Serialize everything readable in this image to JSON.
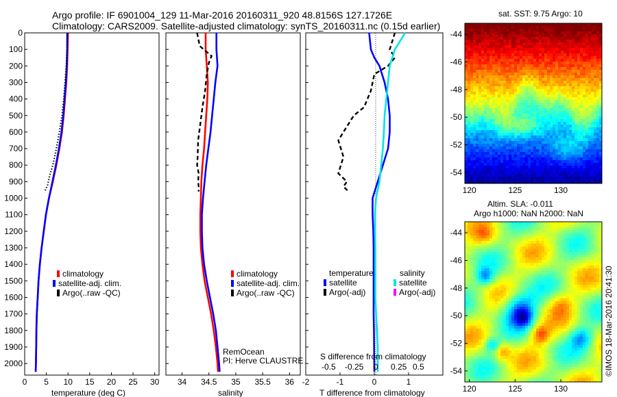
{
  "header": {
    "line1": "Argo profile: IF 6901004_129 11-Mar-2016 20160311_920 48.8156S 127.1726E",
    "line2": "Climatology: CARS2009. Satellite-adjusted climatology: synTS_20160311.nc (0.15d earlier)"
  },
  "credit": "©IMOS 18-Mar-2016 20:41:30",
  "colors": {
    "climatology": "#ff0000",
    "satellite": "#0000ff",
    "argo": "#000000",
    "sal_satellite": "#00e5e5",
    "sal_argo": "#ff00ff"
  },
  "chart_data": [
    {
      "type": "line",
      "id": "temp",
      "xlabel": "temperature (deg C)",
      "ylabel": "",
      "xlim": [
        0,
        31
      ],
      "ylim": [
        2070,
        0
      ],
      "x_ticks": [
        0,
        5,
        10,
        15,
        20,
        25,
        30
      ],
      "y_ticks": [
        0,
        100,
        200,
        300,
        400,
        500,
        600,
        700,
        800,
        900,
        1000,
        1100,
        1200,
        1300,
        1400,
        1500,
        1600,
        1700,
        1800,
        1900,
        2000
      ],
      "legend": [
        "climatology",
        "satellite-adj. clim.",
        "Argo(..raw -QC)"
      ],
      "legend_position": "lower-right",
      "series": [
        {
          "name": "climatology",
          "color": "#ff0000",
          "style": "solid",
          "x": [
            10.0,
            9.9,
            9.8,
            9.6,
            9.3,
            9.0,
            8.6,
            8.0,
            7.3,
            6.5,
            5.6,
            4.9,
            4.4,
            3.9,
            3.5,
            3.2,
            3.0,
            2.8,
            2.7,
            2.65,
            2.6,
            2.55
          ],
          "y": [
            0,
            100,
            200,
            300,
            400,
            500,
            600,
            700,
            800,
            900,
            1000,
            1100,
            1200,
            1300,
            1400,
            1500,
            1600,
            1700,
            1800,
            1900,
            2000,
            2050
          ]
        },
        {
          "name": "satellite-adj. clim.",
          "color": "#0000ff",
          "style": "solid",
          "x": [
            9.8,
            9.8,
            9.7,
            9.5,
            9.2,
            8.9,
            8.5,
            7.9,
            7.2,
            6.4,
            5.6,
            4.9,
            4.4,
            3.9,
            3.5,
            3.2,
            3.0,
            2.8,
            2.7,
            2.65,
            2.6,
            2.55
          ],
          "y": [
            0,
            100,
            200,
            300,
            400,
            500,
            600,
            700,
            800,
            900,
            1000,
            1100,
            1200,
            1300,
            1400,
            1500,
            1600,
            1700,
            1800,
            1900,
            2000,
            2050
          ]
        },
        {
          "name": "Argo(..raw -QC)",
          "color": "#000000",
          "style": "dotted",
          "x": [
            9.9,
            9.8,
            9.6,
            9.3,
            9.0,
            8.6,
            8.0,
            7.3,
            6.5,
            5.8,
            5.3,
            4.6
          ],
          "y": [
            0,
            100,
            200,
            300,
            400,
            500,
            600,
            700,
            800,
            860,
            920,
            960
          ]
        }
      ]
    },
    {
      "type": "line",
      "id": "sal",
      "xlabel": "salinity",
      "ylabel": "",
      "xlim": [
        33.7,
        36.2
      ],
      "ylim": [
        2070,
        0
      ],
      "x_ticks": [
        34,
        34.5,
        35,
        35.5,
        36
      ],
      "legend": [
        "climatology",
        "satellite-adj. clim.",
        "Argo(..raw -QC)"
      ],
      "legend_position": "lower-right",
      "annotations": [
        "RemOcean",
        "PI: Herve CLAUSTRE"
      ],
      "series": [
        {
          "name": "climatology",
          "color": "#ff0000",
          "style": "solid",
          "x": [
            34.44,
            34.44,
            34.46,
            34.48,
            34.47,
            34.45,
            34.43,
            34.41,
            34.38,
            34.36,
            34.35,
            34.34,
            34.34,
            34.35,
            34.38,
            34.42,
            34.48,
            34.54,
            34.59,
            34.63,
            34.66,
            34.67
          ],
          "y": [
            0,
            100,
            200,
            300,
            400,
            500,
            600,
            700,
            800,
            900,
            1000,
            1100,
            1200,
            1300,
            1400,
            1500,
            1600,
            1700,
            1800,
            1900,
            2000,
            2050
          ]
        },
        {
          "name": "satellite-adj. clim.",
          "color": "#0000ff",
          "style": "solid",
          "x": [
            34.64,
            34.64,
            34.66,
            34.62,
            34.59,
            34.56,
            34.53,
            34.49,
            34.45,
            34.42,
            34.39,
            34.37,
            34.37,
            34.38,
            34.41,
            34.46,
            34.52,
            34.58,
            34.63,
            34.66,
            34.69,
            34.7
          ],
          "y": [
            0,
            100,
            200,
            300,
            400,
            500,
            600,
            700,
            800,
            900,
            1000,
            1100,
            1200,
            1300,
            1400,
            1500,
            1600,
            1700,
            1800,
            1900,
            2000,
            2050
          ]
        },
        {
          "name": "Argo(..raw -QC)",
          "color": "#000000",
          "style": "dashed",
          "x": [
            34.28,
            34.33,
            34.55,
            34.5,
            34.46,
            34.43,
            34.38,
            34.34,
            34.3,
            34.29,
            34.28,
            34.31,
            34.3,
            34.31,
            34.31
          ],
          "y": [
            0,
            80,
            140,
            180,
            250,
            350,
            450,
            550,
            650,
            750,
            800,
            850,
            900,
            930,
            960
          ]
        }
      ]
    },
    {
      "type": "line",
      "id": "diff",
      "xlabel": "T difference from climatology",
      "xlabel_top": "S difference from climatology",
      "ylabel": "",
      "xlim": [
        -2.0,
        2.0
      ],
      "ylim": [
        2070,
        0
      ],
      "x_ticks": [
        -2,
        -1,
        0,
        1
      ],
      "x_ticks_top": [
        "-0.5",
        "-0.25",
        "0",
        "0.25",
        "0.5"
      ],
      "legend_temperature_title": "temperature",
      "legend_salinity_title": "salinity",
      "legend": [
        "satellite",
        "Argo(-adj)",
        "satellite",
        "Argo(-adj)"
      ],
      "legend_position": "lower-center",
      "series": [
        {
          "name": "satellite",
          "color": "#0000ff",
          "style": "solid",
          "x": [
            -0.15,
            -0.1,
            0.0,
            0.15,
            0.3,
            0.4,
            0.45,
            0.45,
            0.4,
            0.25,
            0.1,
            -0.05,
            -0.05,
            -0.03,
            -0.02,
            -0.02,
            -0.02,
            -0.02,
            -0.02,
            -0.01,
            0.0
          ],
          "y": [
            0,
            100,
            150,
            200,
            300,
            400,
            500,
            600,
            700,
            800,
            900,
            1000,
            1100,
            1200,
            1300,
            1400,
            1500,
            1600,
            1700,
            1800,
            2050
          ]
        },
        {
          "name": "Argo(-adj)",
          "color": "#000000",
          "style": "dashed",
          "x": [
            0.6,
            0.45,
            0.6,
            0.4,
            0.0,
            -0.1,
            -0.3,
            -0.6,
            -0.9,
            -1.05,
            -0.9,
            -1.05,
            -0.8,
            -0.9,
            -0.75
          ],
          "y": [
            0,
            100,
            150,
            200,
            250,
            350,
            450,
            500,
            600,
            650,
            750,
            850,
            900,
            930,
            960
          ]
        },
        {
          "name": "satellite",
          "color": "#00e5e5",
          "style": "solid",
          "x": [
            0.9,
            0.6,
            0.45,
            0.4,
            0.35,
            0.3,
            0.28,
            0.25,
            0.2,
            0.15,
            0.05,
            0.02,
            0.02,
            0.03,
            0.03,
            0.03,
            0.03,
            0.05,
            0.08,
            0.1,
            0.1
          ],
          "y": [
            0,
            100,
            200,
            300,
            400,
            500,
            600,
            700,
            800,
            900,
            1000,
            1100,
            1200,
            1300,
            1400,
            1500,
            1600,
            1700,
            1800,
            1900,
            2050
          ]
        }
      ]
    },
    {
      "type": "heatmap",
      "id": "sst_map",
      "title": "sat. SST: 9.75 Argo: 10",
      "x_ticks": [
        120,
        125,
        130
      ],
      "y_ticks": [
        -44,
        -46,
        -48,
        -50,
        -52,
        -54
      ],
      "xlim": [
        119.5,
        134.5
      ],
      "ylim": [
        -54.8,
        -43.2
      ]
    },
    {
      "type": "heatmap",
      "id": "sla_map",
      "title": "Altim. SLA: -0.011",
      "subtitle": "Argo h1000: NaN h2000: NaN",
      "x_ticks": [
        120,
        125,
        130
      ],
      "y_ticks": [
        -44,
        -46,
        -48,
        -50,
        -52,
        -54
      ],
      "xlim": [
        119.5,
        134.5
      ],
      "ylim": [
        -54.8,
        -43.2
      ]
    }
  ]
}
